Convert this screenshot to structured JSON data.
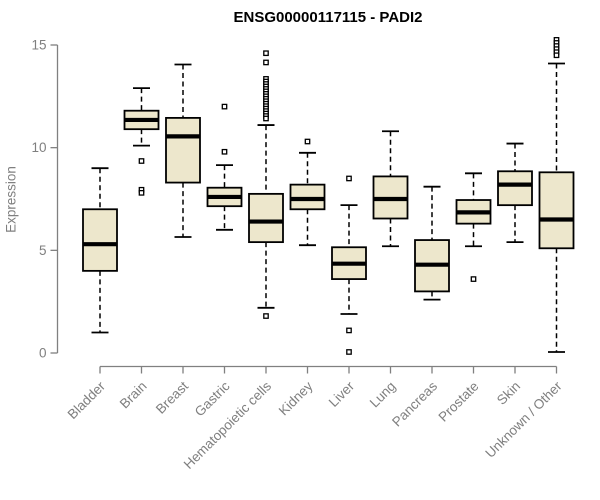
{
  "colors": {
    "box_fill": "#EDE7CC",
    "box_stroke": "#000000",
    "median": "#000000",
    "whisker": "#000000",
    "axis": "#808080",
    "muted_text": "#7F7F7F",
    "title_text": "#000000",
    "background": "#FFFFFF"
  },
  "chart_data": {
    "type": "box",
    "title": "ENSG00000117115 - PADI2",
    "xlabel": "",
    "ylabel": "Expression",
    "ylim": [
      0,
      15
    ],
    "yticks": [
      0,
      5,
      10,
      15
    ],
    "ytick_labels": [
      "0",
      "5",
      "10",
      "15"
    ],
    "grid": "off",
    "legend": "none",
    "categories": [
      "Bladder",
      "Brain",
      "Breast",
      "Gastric",
      "Hematopoietic cells",
      "Kidney",
      "Liver",
      "Lung",
      "Pancreas",
      "Prostate",
      "Skin",
      "Unknown / Other"
    ],
    "series": [
      {
        "label": "Bladder",
        "whislo": 1.0,
        "q1": 4.0,
        "med": 5.3,
        "q3": 7.0,
        "whishi": 9.0,
        "outliers": []
      },
      {
        "label": "Brain",
        "whislo": 10.1,
        "q1": 10.9,
        "med": 11.35,
        "q3": 11.8,
        "whishi": 12.9,
        "outliers": [
          9.35,
          7.95,
          7.8
        ]
      },
      {
        "label": "Breast",
        "whislo": 5.65,
        "q1": 8.3,
        "med": 10.55,
        "q3": 11.45,
        "whishi": 14.05,
        "outliers": []
      },
      {
        "label": "Gastric",
        "whislo": 6.0,
        "q1": 7.15,
        "med": 7.6,
        "q3": 8.05,
        "whishi": 9.15,
        "outliers": [
          12.0,
          9.8
        ]
      },
      {
        "label": "Hematopoietic cells",
        "whislo": 2.2,
        "q1": 5.4,
        "med": 6.4,
        "q3": 7.75,
        "whishi": 11.1,
        "outliers": [
          14.6,
          14.15,
          13.35,
          13.22,
          13.1,
          12.98,
          12.86,
          12.74,
          12.62,
          12.5,
          12.38,
          12.26,
          12.14,
          12.02,
          11.9,
          11.78,
          11.66,
          11.54,
          11.42,
          1.8
        ]
      },
      {
        "label": "Kidney",
        "whislo": 5.25,
        "q1": 7.0,
        "med": 7.5,
        "q3": 8.2,
        "whishi": 9.75,
        "outliers": [
          10.3
        ]
      },
      {
        "label": "Liver",
        "whislo": 1.9,
        "q1": 3.6,
        "med": 4.35,
        "q3": 5.15,
        "whishi": 7.2,
        "outliers": [
          8.5,
          1.1,
          0.05
        ]
      },
      {
        "label": "Lung",
        "whislo": 5.2,
        "q1": 6.55,
        "med": 7.5,
        "q3": 8.6,
        "whishi": 10.8,
        "outliers": []
      },
      {
        "label": "Pancreas",
        "whislo": 2.6,
        "q1": 3.0,
        "med": 4.3,
        "q3": 5.5,
        "whishi": 8.1,
        "outliers": []
      },
      {
        "label": "Prostate",
        "whislo": 5.2,
        "q1": 6.3,
        "med": 6.85,
        "q3": 7.45,
        "whishi": 8.75,
        "outliers": [
          3.6
        ]
      },
      {
        "label": "Skin",
        "whislo": 5.4,
        "q1": 7.2,
        "med": 8.2,
        "q3": 8.85,
        "whishi": 10.2,
        "outliers": []
      },
      {
        "label": "Unknown / Other",
        "whislo": 0.05,
        "q1": 5.1,
        "med": 6.5,
        "q3": 8.8,
        "whishi": 14.1,
        "outliers": [
          15.25,
          15.1,
          14.95,
          14.8,
          14.65,
          14.5
        ]
      }
    ]
  }
}
